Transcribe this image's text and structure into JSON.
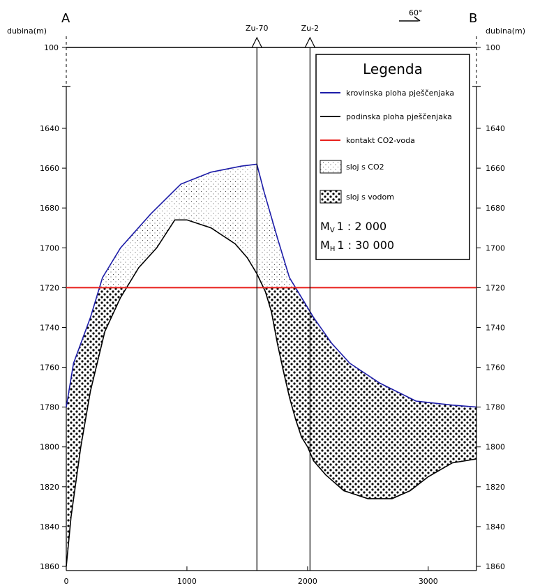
{
  "section": {
    "start_label": "A",
    "end_label": "B",
    "direction_label": "60°",
    "depth_label_left": "dubina(m)",
    "depth_label_right": "dubina(m)",
    "top_depth_label": "100"
  },
  "wells": [
    {
      "name": "Zu-70",
      "x": 1580
    },
    {
      "name": "Zu-2",
      "x": 2020
    }
  ],
  "legend": {
    "title": "Legenda",
    "items": [
      {
        "label": "krovinska ploha pješčenjaka",
        "color": "#1c1ca8",
        "kind": "line"
      },
      {
        "label": "podinska ploha pješčenjaka",
        "color": "#000000",
        "kind": "line"
      },
      {
        "label": "kontakt CO2-voda",
        "color": "#e8201c",
        "kind": "line"
      },
      {
        "label": "sloj s CO2",
        "kind": "fine-dots"
      },
      {
        "label": "sloj s vodom",
        "kind": "coarse-dots"
      }
    ],
    "scale_v_main": "M",
    "scale_v_sub": "V",
    "scale_v_ratio": "1 : 2 000",
    "scale_h_main": "M",
    "scale_h_sub": "H",
    "scale_h_ratio": "1 : 30 000"
  },
  "chart_data": {
    "type": "cross-section",
    "x_ticks": [
      0,
      1000,
      2000,
      3000
    ],
    "y_ticks": [
      1640,
      1660,
      1680,
      1700,
      1720,
      1740,
      1760,
      1780,
      1800,
      1820,
      1840,
      1860
    ],
    "y_labels": [
      "1640",
      "1660",
      "1680",
      "1700",
      "1720",
      "1740",
      "1760",
      "1780",
      "1800",
      "1820",
      "1840",
      "1860"
    ],
    "xlim": [
      0,
      3400
    ],
    "ylim": [
      1620,
      1860
    ],
    "contact_depth": 1720,
    "top_surface": {
      "x": [
        0,
        60,
        200,
        300,
        450,
        700,
        950,
        1200,
        1450,
        1580,
        1640,
        1750,
        1850,
        1950,
        2050,
        2200,
        2350,
        2600,
        2900,
        3200,
        3400
      ],
      "y": [
        1780,
        1758,
        1735,
        1715,
        1700,
        1683,
        1668,
        1662,
        1659,
        1658,
        1672,
        1695,
        1715,
        1725,
        1735,
        1748,
        1758,
        1768,
        1777,
        1779,
        1780
      ]
    },
    "bottom_surface": {
      "x": [
        0,
        40,
        120,
        200,
        320,
        450,
        600,
        750,
        900,
        1000,
        1200,
        1400,
        1500,
        1580,
        1650,
        1700,
        1750,
        1800,
        1850,
        1900,
        1950,
        2000,
        2050,
        2150,
        2300,
        2500,
        2700,
        2850,
        3000,
        3200,
        3400
      ],
      "y": [
        1860,
        1835,
        1800,
        1772,
        1742,
        1725,
        1710,
        1700,
        1686,
        1686,
        1690,
        1698,
        1705,
        1713,
        1722,
        1732,
        1748,
        1762,
        1775,
        1786,
        1795,
        1800,
        1807,
        1814,
        1822,
        1826,
        1826,
        1822,
        1815,
        1808,
        1806
      ]
    }
  }
}
